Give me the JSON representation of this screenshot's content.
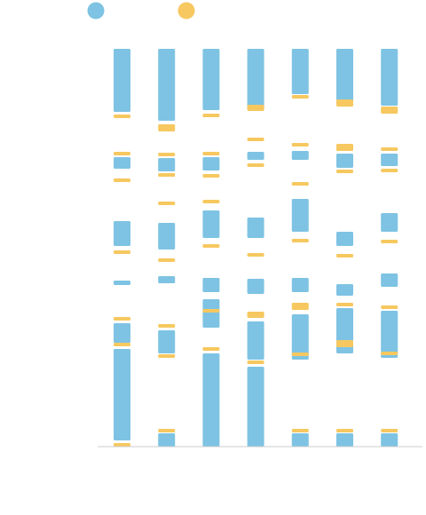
{
  "colors": {
    "blue": "#7EC3E3",
    "yellow": "#F6C85F",
    "axis": "#cccccc",
    "background": "#ffffff"
  },
  "legend": [
    {
      "name": "",
      "color": "#7EC3E3"
    },
    {
      "name": "",
      "color": "#F6C85F"
    }
  ],
  "chart_data": {
    "type": "bar",
    "title": "",
    "xlabel": "",
    "ylabel": "",
    "ylim": [
      0,
      448
    ],
    "grid": false,
    "legend_position": "top-left",
    "columns": [
      {
        "segments": [
          {
            "s": 0,
            "e": 4,
            "c": "yellow"
          },
          {
            "s": 7,
            "e": 110,
            "c": "blue"
          },
          {
            "s": 113,
            "e": 117,
            "c": "yellow"
          },
          {
            "s": 117,
            "e": 139,
            "c": "blue"
          },
          {
            "s": 142,
            "e": 146,
            "c": "yellow"
          },
          {
            "s": 182,
            "e": 187,
            "c": "blue"
          },
          {
            "s": 217,
            "e": 221,
            "c": "yellow"
          },
          {
            "s": 226,
            "e": 254,
            "c": "blue"
          },
          {
            "s": 298,
            "e": 302,
            "c": "yellow"
          },
          {
            "s": 313,
            "e": 326,
            "c": "blue"
          },
          {
            "s": 328,
            "e": 332,
            "c": "yellow"
          },
          {
            "s": 370,
            "e": 374,
            "c": "yellow"
          },
          {
            "s": 377,
            "e": 448,
            "c": "blue"
          }
        ]
      },
      {
        "segments": [
          {
            "s": 0,
            "e": 15,
            "c": "blue"
          },
          {
            "s": 16,
            "e": 20,
            "c": "yellow"
          },
          {
            "s": 100,
            "e": 104,
            "c": "yellow"
          },
          {
            "s": 105,
            "e": 131,
            "c": "blue"
          },
          {
            "s": 134,
            "e": 138,
            "c": "yellow"
          },
          {
            "s": 184,
            "e": 192,
            "c": "blue"
          },
          {
            "s": 208,
            "e": 212,
            "c": "yellow"
          },
          {
            "s": 222,
            "e": 252,
            "c": "blue"
          },
          {
            "s": 272,
            "e": 276,
            "c": "yellow"
          },
          {
            "s": 304,
            "e": 308,
            "c": "yellow"
          },
          {
            "s": 310,
            "e": 325,
            "c": "blue"
          },
          {
            "s": 327,
            "e": 331,
            "c": "yellow"
          },
          {
            "s": 355,
            "e": 363,
            "c": "yellow"
          },
          {
            "s": 367,
            "e": 448,
            "c": "blue"
          }
        ]
      },
      {
        "segments": [
          {
            "s": 0,
            "e": 105,
            "c": "blue"
          },
          {
            "s": 108,
            "e": 112,
            "c": "yellow"
          },
          {
            "s": 134,
            "e": 166,
            "c": "blue"
          },
          {
            "s": 151,
            "e": 155,
            "c": "yellow"
          },
          {
            "s": 174,
            "e": 190,
            "c": "blue"
          },
          {
            "s": 224,
            "e": 228,
            "c": "yellow"
          },
          {
            "s": 235,
            "e": 266,
            "c": "blue"
          },
          {
            "s": 274,
            "e": 278,
            "c": "yellow"
          },
          {
            "s": 303,
            "e": 307,
            "c": "yellow"
          },
          {
            "s": 311,
            "e": 326,
            "c": "blue"
          },
          {
            "s": 328,
            "e": 332,
            "c": "yellow"
          },
          {
            "s": 371,
            "e": 375,
            "c": "yellow"
          },
          {
            "s": 379,
            "e": 448,
            "c": "blue"
          }
        ]
      },
      {
        "segments": [
          {
            "s": 0,
            "e": 90,
            "c": "blue"
          },
          {
            "s": 93,
            "e": 97,
            "c": "yellow"
          },
          {
            "s": 98,
            "e": 141,
            "c": "blue"
          },
          {
            "s": 145,
            "e": 152,
            "c": "yellow"
          },
          {
            "s": 172,
            "e": 189,
            "c": "blue"
          },
          {
            "s": 214,
            "e": 218,
            "c": "yellow"
          },
          {
            "s": 235,
            "e": 258,
            "c": "blue"
          },
          {
            "s": 315,
            "e": 319,
            "c": "yellow"
          },
          {
            "s": 323,
            "e": 332,
            "c": "blue"
          },
          {
            "s": 344,
            "e": 348,
            "c": "yellow"
          },
          {
            "s": 378,
            "e": 385,
            "c": "yellow"
          },
          {
            "s": 379,
            "e": 448,
            "c": "blue"
          }
        ]
      },
      {
        "segments": [
          {
            "s": 0,
            "e": 15,
            "c": "blue"
          },
          {
            "s": 16,
            "e": 20,
            "c": "yellow"
          },
          {
            "s": 98,
            "e": 149,
            "c": "blue"
          },
          {
            "s": 102,
            "e": 106,
            "c": "yellow"
          },
          {
            "s": 154,
            "e": 162,
            "c": "yellow"
          },
          {
            "s": 174,
            "e": 190,
            "c": "blue"
          },
          {
            "s": 230,
            "e": 234,
            "c": "yellow"
          },
          {
            "s": 242,
            "e": 279,
            "c": "blue"
          },
          {
            "s": 294,
            "e": 298,
            "c": "yellow"
          },
          {
            "s": 323,
            "e": 333,
            "c": "blue"
          },
          {
            "s": 338,
            "e": 342,
            "c": "yellow"
          },
          {
            "s": 392,
            "e": 396,
            "c": "yellow"
          },
          {
            "s": 397,
            "e": 448,
            "c": "blue"
          }
        ]
      },
      {
        "segments": [
          {
            "s": 0,
            "e": 15,
            "c": "blue"
          },
          {
            "s": 16,
            "e": 20,
            "c": "yellow"
          },
          {
            "s": 105,
            "e": 156,
            "c": "blue"
          },
          {
            "s": 112,
            "e": 120,
            "c": "yellow"
          },
          {
            "s": 158,
            "e": 162,
            "c": "yellow"
          },
          {
            "s": 170,
            "e": 183,
            "c": "blue"
          },
          {
            "s": 213,
            "e": 217,
            "c": "yellow"
          },
          {
            "s": 226,
            "e": 242,
            "c": "blue"
          },
          {
            "s": 308,
            "e": 312,
            "c": "yellow"
          },
          {
            "s": 314,
            "e": 330,
            "c": "blue"
          },
          {
            "s": 333,
            "e": 341,
            "c": "yellow"
          },
          {
            "s": 383,
            "e": 391,
            "c": "yellow"
          },
          {
            "s": 389,
            "e": 448,
            "c": "blue"
          }
        ]
      },
      {
        "segments": [
          {
            "s": 0,
            "e": 15,
            "c": "blue"
          },
          {
            "s": 16,
            "e": 20,
            "c": "yellow"
          },
          {
            "s": 100,
            "e": 153,
            "c": "blue"
          },
          {
            "s": 103,
            "e": 107,
            "c": "yellow"
          },
          {
            "s": 155,
            "e": 159,
            "c": "yellow"
          },
          {
            "s": 180,
            "e": 195,
            "c": "blue"
          },
          {
            "s": 229,
            "e": 233,
            "c": "yellow"
          },
          {
            "s": 242,
            "e": 263,
            "c": "blue"
          },
          {
            "s": 309,
            "e": 313,
            "c": "yellow"
          },
          {
            "s": 316,
            "e": 330,
            "c": "blue"
          },
          {
            "s": 333,
            "e": 337,
            "c": "yellow"
          },
          {
            "s": 375,
            "e": 383,
            "c": "yellow"
          },
          {
            "s": 384,
            "e": 448,
            "c": "blue"
          }
        ]
      }
    ]
  }
}
